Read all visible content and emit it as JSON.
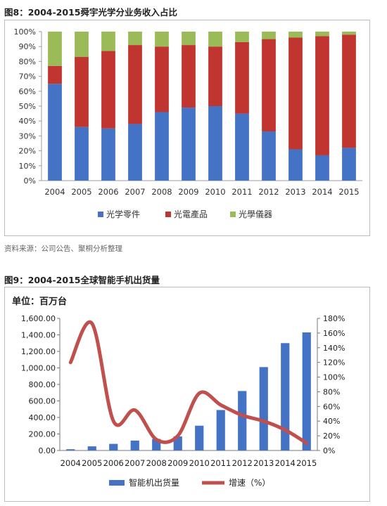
{
  "figure1": {
    "title": "图8：2004-2015舜宇光学分业务收入占比"
  },
  "source_note": "资料来源：公司公告、聚桐分析整理",
  "figure2": {
    "title": "图9：2004-2015全球智能手机出货量",
    "unit_label": "单位：百万台"
  },
  "chart_data": [
    {
      "type": "bar",
      "stacked": true,
      "title": "图8：2004-2015舜宇光学分业务收入占比",
      "categories": [
        "2004",
        "2005",
        "2006",
        "2007",
        "2008",
        "2009",
        "2010",
        "2011",
        "2012",
        "2013",
        "2014",
        "2015"
      ],
      "series": [
        {
          "name": "光学零件",
          "color": "#4472c4",
          "values": [
            65,
            36,
            35,
            38,
            46,
            49,
            50,
            45,
            33,
            21,
            17,
            22
          ]
        },
        {
          "name": "光電產品",
          "color": "#c0352f",
          "values": [
            12,
            47,
            52,
            53,
            44,
            42,
            40,
            48,
            62,
            75,
            80,
            76
          ]
        },
        {
          "name": "光學儀器",
          "color": "#9bbb59",
          "values": [
            23,
            17,
            13,
            9,
            10,
            9,
            10,
            7,
            5,
            4,
            3,
            2
          ]
        }
      ],
      "yticks": [
        "0%",
        "10%",
        "20%",
        "30%",
        "40%",
        "50%",
        "60%",
        "70%",
        "80%",
        "90%",
        "100%"
      ],
      "ylim": [
        0,
        100
      ],
      "legend_position": "bottom",
      "grid": false
    },
    {
      "type": "bar+line",
      "title": "图9：2004-2015全球智能手机出货量",
      "categories": [
        "2004",
        "2005",
        "2006",
        "2007",
        "2008",
        "2009",
        "2010",
        "2011",
        "2012",
        "2013",
        "2014",
        "2015"
      ],
      "series": [
        {
          "name": "智能机出货量",
          "type": "bar",
          "axis": "left",
          "color": "#4472c4",
          "values": [
            15,
            50,
            80,
            120,
            140,
            170,
            300,
            490,
            720,
            1010,
            1300,
            1430
          ]
        },
        {
          "name": "增速（%）",
          "type": "line",
          "axis": "right",
          "color": "#c0504d",
          "values": [
            120,
            173,
            40,
            55,
            15,
            20,
            78,
            62,
            48,
            40,
            28,
            10
          ]
        }
      ],
      "yticks_left": [
        "0.00",
        "200.00",
        "400.00",
        "600.00",
        "800.00",
        "1,000.00",
        "1,200.00",
        "1,400.00",
        "1,600.00"
      ],
      "yticks_right": [
        "0%",
        "20%",
        "40%",
        "60%",
        "80%",
        "100%",
        "120%",
        "140%",
        "160%",
        "180%"
      ],
      "ylim_left": [
        0,
        1600
      ],
      "ylim_right": [
        0,
        180
      ],
      "legend_position": "bottom",
      "grid": false
    }
  ]
}
